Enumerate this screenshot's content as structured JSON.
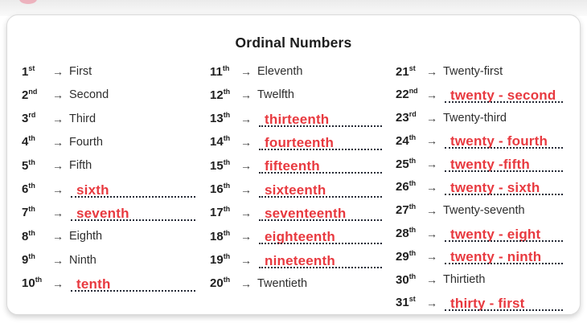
{
  "title": "Ordinal Numbers",
  "arrow_glyph": "→",
  "colors": {
    "handwriting_red": "#e8393f",
    "printed_ink": "#2e2e2e",
    "dotted_line": "#272c38"
  },
  "columns": [
    {
      "name": "ordinals-1-10",
      "entries": [
        {
          "ordinal": "1",
          "suffix": "st",
          "word": "First",
          "style": "printed"
        },
        {
          "ordinal": "2",
          "suffix": "nd",
          "word": "Second",
          "style": "printed"
        },
        {
          "ordinal": "3",
          "suffix": "rd",
          "word": "Third",
          "style": "printed"
        },
        {
          "ordinal": "4",
          "suffix": "th",
          "word": "Fourth",
          "style": "printed"
        },
        {
          "ordinal": "5",
          "suffix": "th",
          "word": "Fifth",
          "style": "printed"
        },
        {
          "ordinal": "6",
          "suffix": "th",
          "word": "sixth",
          "style": "handwritten"
        },
        {
          "ordinal": "7",
          "suffix": "th",
          "word": "seventh",
          "style": "handwritten"
        },
        {
          "ordinal": "8",
          "suffix": "th",
          "word": "Eighth",
          "style": "printed"
        },
        {
          "ordinal": "9",
          "suffix": "th",
          "word": "Ninth",
          "style": "printed"
        },
        {
          "ordinal": "10",
          "suffix": "th",
          "word": "tenth",
          "style": "handwritten"
        }
      ]
    },
    {
      "name": "ordinals-11-20",
      "entries": [
        {
          "ordinal": "11",
          "suffix": "th",
          "word": "Eleventh",
          "style": "printed"
        },
        {
          "ordinal": "12",
          "suffix": "th",
          "word": "Twelfth",
          "style": "printed"
        },
        {
          "ordinal": "13",
          "suffix": "th",
          "word": "thirteenth",
          "style": "handwritten"
        },
        {
          "ordinal": "14",
          "suffix": "th",
          "word": "fourteenth",
          "style": "handwritten"
        },
        {
          "ordinal": "15",
          "suffix": "th",
          "word": "fifteenth",
          "style": "handwritten"
        },
        {
          "ordinal": "16",
          "suffix": "th",
          "word": "sixteenth",
          "style": "handwritten"
        },
        {
          "ordinal": "17",
          "suffix": "th",
          "word": "seventeenth",
          "style": "handwritten"
        },
        {
          "ordinal": "18",
          "suffix": "th",
          "word": "eighteenth",
          "style": "handwritten"
        },
        {
          "ordinal": "19",
          "suffix": "th",
          "word": "nineteenth",
          "style": "handwritten"
        },
        {
          "ordinal": "20",
          "suffix": "th",
          "word": "Twentieth",
          "style": "printed"
        }
      ]
    },
    {
      "name": "ordinals-21-31",
      "entries": [
        {
          "ordinal": "21",
          "suffix": "st",
          "word": "Twenty-first",
          "style": "printed"
        },
        {
          "ordinal": "22",
          "suffix": "nd",
          "word": "twenty - second",
          "style": "handwritten"
        },
        {
          "ordinal": "23",
          "suffix": "rd",
          "word": "Twenty-third",
          "style": "printed"
        },
        {
          "ordinal": "24",
          "suffix": "th",
          "word": "twenty - fourth",
          "style": "handwritten"
        },
        {
          "ordinal": "25",
          "suffix": "th",
          "word": "twenty -fifth",
          "style": "handwritten"
        },
        {
          "ordinal": "26",
          "suffix": "th",
          "word": "twenty - sixth",
          "style": "handwritten"
        },
        {
          "ordinal": "27",
          "suffix": "th",
          "word": "Twenty-seventh",
          "style": "printed"
        },
        {
          "ordinal": "28",
          "suffix": "th",
          "word": "twenty - eight",
          "style": "handwritten"
        },
        {
          "ordinal": "29",
          "suffix": "th",
          "word": "twenty - ninth",
          "style": "handwritten"
        },
        {
          "ordinal": "30",
          "suffix": "th",
          "word": "Thirtieth",
          "style": "printed"
        },
        {
          "ordinal": "31",
          "suffix": "st",
          "word": "thirty - first",
          "style": "handwritten"
        }
      ]
    }
  ]
}
